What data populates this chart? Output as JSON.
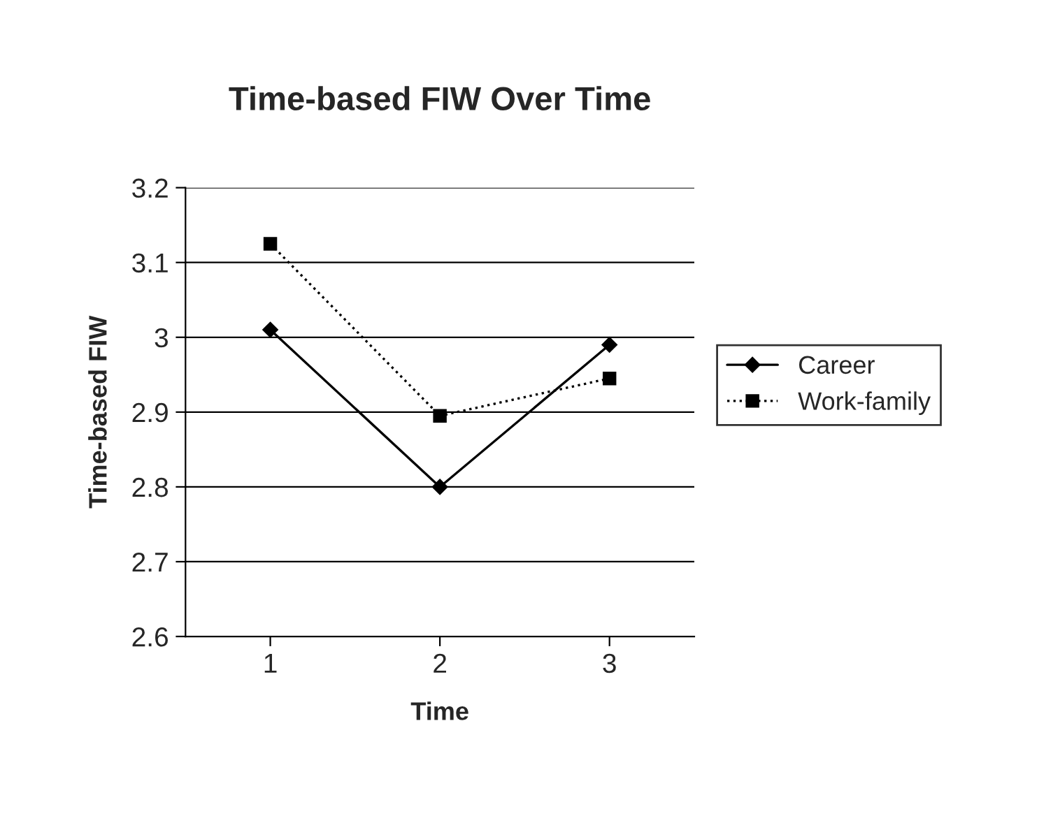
{
  "chart_data": {
    "type": "line",
    "title": "Time-based FIW Over Time",
    "xlabel": "Time",
    "ylabel": "Time-based FIW",
    "categories": [
      "1",
      "2",
      "3"
    ],
    "series": [
      {
        "name": "Career",
        "color": "#000000",
        "marker": "diamond",
        "line_style": "solid",
        "values": [
          3.01,
          2.8,
          2.99
        ]
      },
      {
        "name": "Work-family",
        "color": "#000000",
        "marker": "square",
        "line_style": "dotted",
        "values": [
          3.125,
          2.895,
          2.945
        ]
      }
    ],
    "ylim": [
      2.6,
      3.2
    ],
    "yticks": [
      2.6,
      2.7,
      2.8,
      2.9,
      3,
      3.1,
      3.2
    ],
    "grid": "y",
    "legend": "right"
  }
}
